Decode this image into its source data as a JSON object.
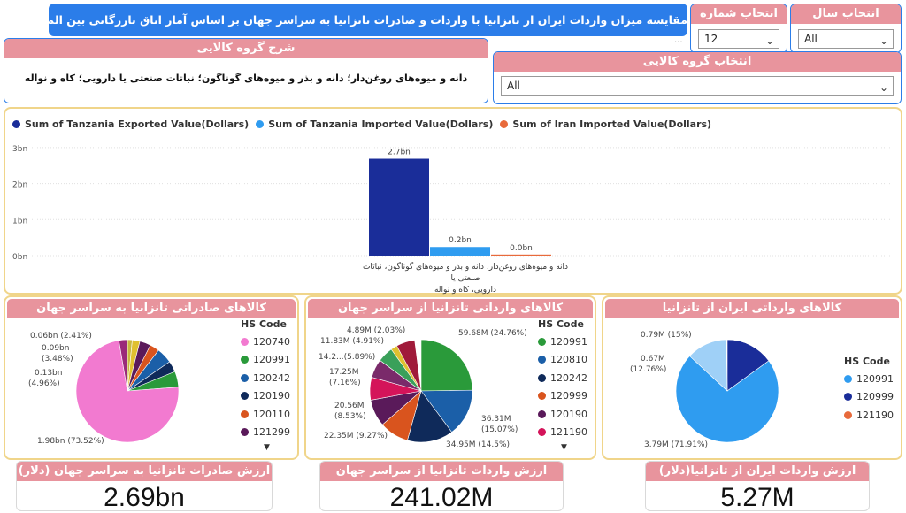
{
  "title": "مقایسه میزان واردات ایران از تانزانیا با واردات و صادرات تانزانیا به سراسر جهان بر اساس آمار اتاق بازرگانی بین المللی",
  "title_more": "...",
  "season_slicer": {
    "label": "انتخاب شماره فصل",
    "value": "12"
  },
  "year_slicer": {
    "label": "انتخاب سال",
    "value": "All"
  },
  "group_slicer": {
    "label": "انتخاب گروه کالایی",
    "value": "All"
  },
  "group_desc": {
    "label": "شرح گروه کالایی",
    "text": "دانه و میوه‌های روغن‌دار؛ دانه و بذر و میوه‌های گوناگون؛ نباتات صنعتی یا دارویی؛ کاه و نواله"
  },
  "bar_chart": {
    "legend": [
      {
        "label": "Sum of Tanzania Exported Value(Dollars)",
        "color": "#1a2d99"
      },
      {
        "label": "Sum of Tanzania Imported Value(Dollars)",
        "color": "#2f9cf0"
      },
      {
        "label": "Sum of Iran Imported Value(Dollars)",
        "color": "#e86a3b"
      }
    ],
    "yticks": [
      "3bn",
      "2bn",
      "1bn",
      "0bn"
    ],
    "data_labels": [
      "2.7bn",
      "0.2bn",
      "0.0bn"
    ],
    "category_lines": [
      "دانه و میوه‌های روغن‌دار، دانه و بذر و میوه‌های گوناگون، نباتات صنعتی یا",
      "دارویی، کاه و نواله"
    ]
  },
  "chart_data": {
    "type": "bar",
    "categories": [
      "دانه و میوه‌های روغن‌دار، دانه و بذر و میوه‌های گوناگون، نباتات صنعتی یا دارویی، کاه و نواله"
    ],
    "series": [
      {
        "name": "Sum of Tanzania Exported Value(Dollars)",
        "values": [
          2.69
        ]
      },
      {
        "name": "Sum of Tanzania Imported Value(Dollars)",
        "values": [
          0.24
        ]
      },
      {
        "name": "Sum of Iran Imported Value(Dollars)",
        "values": [
          0.005
        ]
      }
    ],
    "ylim": [
      0,
      3
    ],
    "legend_position": "top-left"
  },
  "pie1": {
    "title": "کالاهای صادراتی تانزانیا به سراسر جهان",
    "legend_title": "HS Code",
    "codes": [
      {
        "code": "120740",
        "color": "#f27ad0"
      },
      {
        "code": "120991",
        "color": "#2a9a3a"
      },
      {
        "code": "120242",
        "color": "#1b5fa8"
      },
      {
        "code": "120190",
        "color": "#0f2a5a"
      },
      {
        "code": "120110",
        "color": "#d9541e"
      },
      {
        "code": "121299",
        "color": "#5a1a5a"
      }
    ],
    "labels": [
      "0.06bn (2.41%)",
      "0.09bn",
      "(3.48%)",
      "0.13bn",
      "(4.96%)",
      "1.98bn (73.52%)"
    ]
  },
  "pie2": {
    "title": "کالاهای وارداتی تانزانیا از سراسر جهان",
    "legend_title": "HS Code",
    "codes": [
      {
        "code": "120991",
        "color": "#2a9a3a"
      },
      {
        "code": "120810",
        "color": "#1b5fa8"
      },
      {
        "code": "120242",
        "color": "#0f2a5a"
      },
      {
        "code": "120999",
        "color": "#d9541e"
      },
      {
        "code": "120190",
        "color": "#5a1a5a"
      },
      {
        "code": "121190",
        "color": "#d4145a"
      }
    ],
    "labels": [
      "4.89M (2.03%)",
      "11.83M (4.91%)",
      "14.2...(5.89%)",
      "17.25M",
      "(7.16%)",
      "20.56M",
      "(8.53%)",
      "22.35M (9.27%)",
      "59.68M (24.76%)",
      "36.31M",
      "(15.07%)",
      "34.95M (14.5%)"
    ]
  },
  "pie3": {
    "title": "کالاهای وارداتی ایران از تانزانیا",
    "legend_title": "HS Code",
    "codes": [
      {
        "code": "120991",
        "color": "#2f9cf0"
      },
      {
        "code": "120999",
        "color": "#1a2d99"
      },
      {
        "code": "121190",
        "color": "#e86a3b"
      }
    ],
    "labels": [
      "0.79M (15%)",
      "0.67M",
      "(12.76%)",
      "3.79M (71.91%)"
    ]
  },
  "kpis": [
    {
      "label": "ارزش صادرات تانزانیا به سراسر جهان (دلار)",
      "value": "2.69bn"
    },
    {
      "label": "ارزش واردات تانزانیا از سراسر جهان (دلار)",
      "value": "241.02M"
    },
    {
      "label": "ارزش واردات ایران از تانزانیا(دلار)",
      "value": "5.27M"
    }
  ]
}
